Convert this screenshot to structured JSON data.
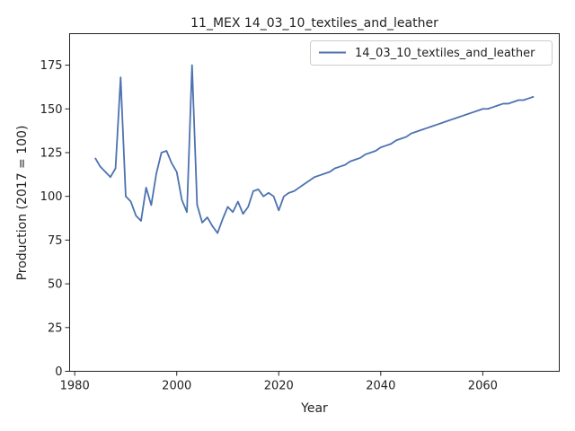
{
  "chart_data": {
    "type": "line",
    "title": "11_MEX 14_03_10_textiles_and_leather",
    "xlabel": "Year",
    "ylabel": "Production (2017 = 100)",
    "xlim": [
      1979,
      2075
    ],
    "ylim": [
      0,
      193
    ],
    "xticks": [
      1980,
      2000,
      2020,
      2040,
      2060
    ],
    "yticks": [
      0,
      25,
      50,
      75,
      100,
      125,
      150,
      175
    ],
    "grid": false,
    "legend": "top-right",
    "series": [
      {
        "name": "14_03_10_textiles_and_leather",
        "color": "#4c72b0",
        "x": [
          1984,
          1985,
          1986,
          1987,
          1988,
          1989,
          1990,
          1991,
          1992,
          1993,
          1994,
          1995,
          1996,
          1997,
          1998,
          1999,
          2000,
          2001,
          2002,
          2003,
          2004,
          2005,
          2006,
          2007,
          2008,
          2009,
          2010,
          2011,
          2012,
          2013,
          2014,
          2015,
          2016,
          2017,
          2018,
          2019,
          2020,
          2021,
          2022,
          2023,
          2024,
          2025,
          2026,
          2027,
          2028,
          2029,
          2030,
          2031,
          2032,
          2033,
          2034,
          2035,
          2036,
          2037,
          2038,
          2039,
          2040,
          2041,
          2042,
          2043,
          2044,
          2045,
          2046,
          2047,
          2048,
          2049,
          2050,
          2051,
          2052,
          2053,
          2054,
          2055,
          2056,
          2057,
          2058,
          2059,
          2060,
          2061,
          2062,
          2063,
          2064,
          2065,
          2066,
          2067,
          2068,
          2069,
          2070
        ],
        "values": [
          122,
          117,
          114,
          111,
          116,
          168,
          100,
          97,
          89,
          86,
          105,
          95,
          113,
          125,
          126,
          119,
          114,
          98,
          91,
          175,
          95,
          85,
          88,
          83,
          79,
          87,
          94,
          91,
          97,
          90,
          94,
          103,
          104,
          100,
          102,
          100,
          92,
          100,
          102,
          103,
          105,
          107,
          109,
          111,
          112,
          113,
          114,
          116,
          117,
          118,
          120,
          121,
          122,
          124,
          125,
          126,
          128,
          129,
          130,
          132,
          133,
          134,
          136,
          137,
          138,
          139,
          140,
          141,
          142,
          143,
          144,
          145,
          146,
          147,
          148,
          149,
          150,
          150,
          151,
          152,
          153,
          153,
          154,
          155,
          155,
          156,
          157
        ]
      }
    ]
  }
}
